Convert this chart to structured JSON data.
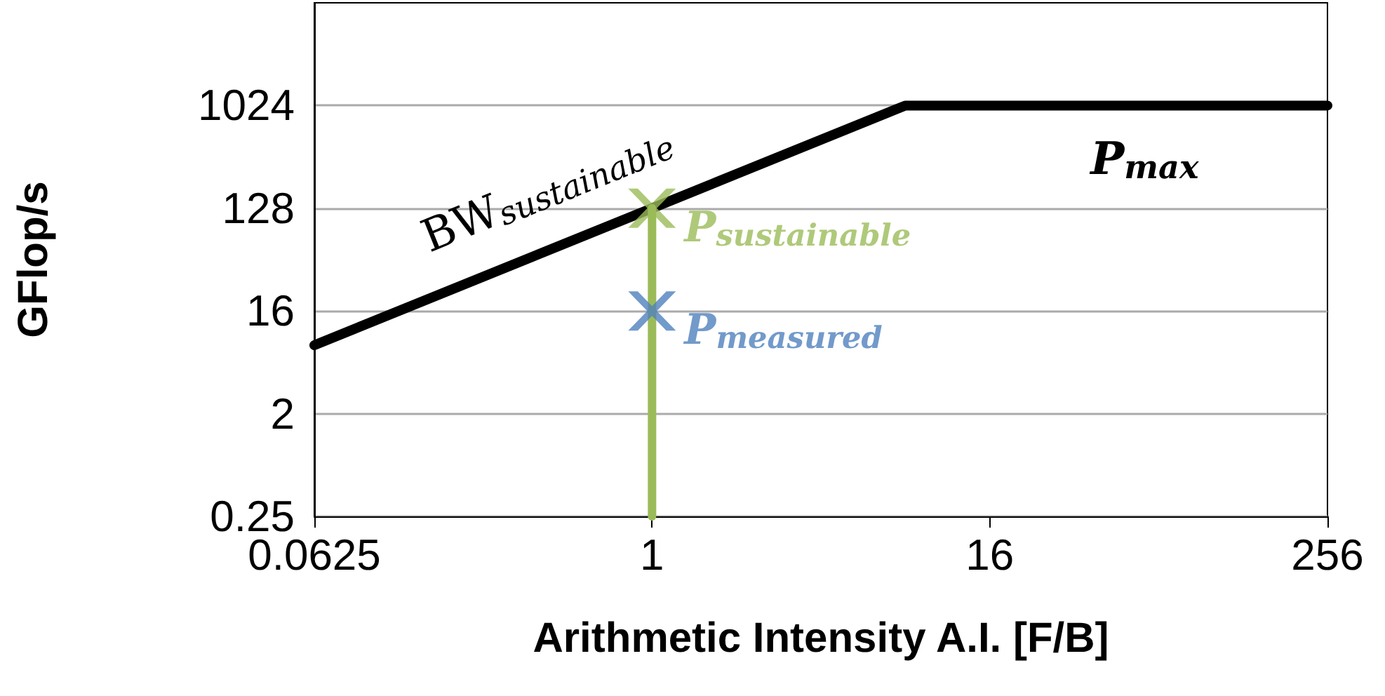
{
  "chart_data": {
    "type": "line",
    "xlabel": "Arithmetic Intensity A.I. [F/B]",
    "ylabel": "GFlop/s",
    "log": "xy",
    "xlim": [
      0.0625,
      256
    ],
    "xticks": [
      0.0625,
      1,
      16,
      256
    ],
    "ylim": [
      0.25,
      8192
    ],
    "yticks": [
      0.25,
      2,
      16,
      128,
      1024
    ],
    "grid": "y",
    "legend": false,
    "line_style": "solid",
    "series": [
      {
        "color": "#000000",
        "x": [
          0.0625,
          8,
          256
        ],
        "values": [
          8,
          1024,
          1024
        ],
        "marker": "none"
      },
      {
        "color": "#9bbb59",
        "x": [
          1,
          1
        ],
        "values": [
          0.25,
          128
        ],
        "marker": "none"
      },
      {
        "type": "scatter",
        "name": "P$_{sustainable}$",
        "color": "#9bbb59",
        "x": [
          1
        ],
        "values": [
          128
        ],
        "marker": "cross"
      },
      {
        "type": "scatter",
        "name": "P$_{measured}$",
        "color": "#4f81bd",
        "x": [
          1
        ],
        "values": [
          16
        ],
        "marker": "cross"
      }
    ],
    "annotations": [
      {
        "text": "BW$_{sustainable}$",
        "x": 0.5,
        "y": 64
      },
      {
        "text": "P$_{max}$",
        "x": 64,
        "y": 1024
      }
    ]
  }
}
